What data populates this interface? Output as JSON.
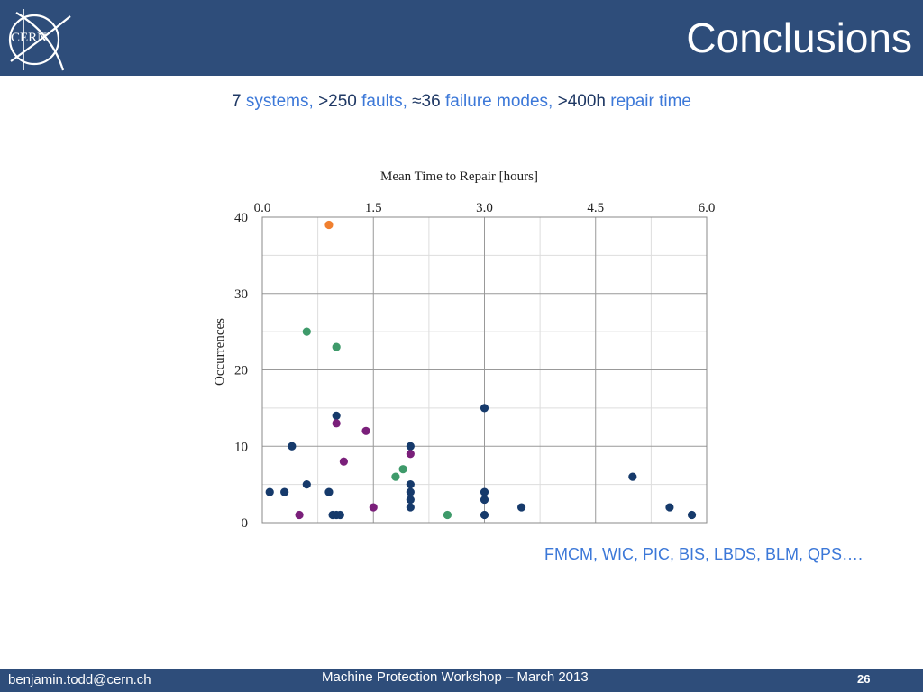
{
  "slide": {
    "title": "Conclusions",
    "logo_text": "CERN",
    "summary": [
      {
        "text": "7",
        "style": "n"
      },
      {
        "text": " systems, ",
        "style": "w"
      },
      {
        "text": ">250",
        "style": "n"
      },
      {
        "text": " faults, ",
        "style": "w"
      },
      {
        "text": "≈36",
        "style": "n"
      },
      {
        "text": " failure modes, ",
        "style": "w"
      },
      {
        "text": ">400h",
        "style": "n"
      },
      {
        "text": " repair time",
        "style": "w"
      }
    ],
    "systems_note": "FMCM, WIC, PIC, BIS, LBDS, BLM, QPS…."
  },
  "footer": {
    "email": "benjamin.todd@cern.ch",
    "event": "Machine Protection Workshop – March 2013",
    "page_number": "26"
  },
  "colors": {
    "header_bg": "#2e4d7a",
    "number_text": "#1f3864",
    "word_text": "#3c78d8",
    "series_navy": "#163a6b",
    "series_orange": "#f08030",
    "series_green": "#3e9a6a",
    "series_purple": "#7a1f7a"
  },
  "chart_data": {
    "type": "scatter",
    "title": "",
    "xlabel": "Mean Time to Repair [hours]",
    "ylabel": "Occurrences",
    "x_axis_position": "top",
    "xlim": [
      0,
      6
    ],
    "ylim": [
      0,
      40
    ],
    "x_ticks": [
      {
        "value": 0,
        "label": "0.0"
      },
      {
        "value": 1.5,
        "label": "1.5"
      },
      {
        "value": 3,
        "label": "3.0"
      },
      {
        "value": 4.5,
        "label": "4.5"
      },
      {
        "value": 6,
        "label": "6.0"
      }
    ],
    "y_ticks": [
      {
        "value": 0,
        "label": "0"
      },
      {
        "value": 10,
        "label": "10"
      },
      {
        "value": 20,
        "label": "20"
      },
      {
        "value": 30,
        "label": "30"
      },
      {
        "value": 40,
        "label": "40"
      }
    ],
    "x_minor_gridlines": [
      0.75,
      2.25,
      3.75,
      5.25
    ],
    "y_minor_gridlines": [
      5,
      15,
      25,
      35
    ],
    "grid": true,
    "series": [
      {
        "color": "#163a6b",
        "points": [
          [
            0.1,
            4
          ],
          [
            0.3,
            4
          ],
          [
            0.4,
            10
          ],
          [
            0.6,
            5
          ],
          [
            0.9,
            4
          ],
          [
            0.95,
            1
          ],
          [
            1.0,
            1
          ],
          [
            1.05,
            1
          ],
          [
            1.0,
            14
          ],
          [
            2.0,
            10
          ],
          [
            2.0,
            5
          ],
          [
            2.0,
            4
          ],
          [
            2.0,
            3
          ],
          [
            2.0,
            2
          ],
          [
            3.0,
            15
          ],
          [
            3.0,
            4
          ],
          [
            3.0,
            3
          ],
          [
            3.0,
            1
          ],
          [
            3.5,
            2
          ],
          [
            5.0,
            6
          ],
          [
            5.5,
            2
          ],
          [
            5.8,
            1
          ]
        ]
      },
      {
        "color": "#f08030",
        "points": [
          [
            0.9,
            39
          ]
        ]
      },
      {
        "color": "#3e9a6a",
        "points": [
          [
            0.6,
            25
          ],
          [
            1.0,
            23
          ],
          [
            1.8,
            6
          ],
          [
            1.9,
            7
          ],
          [
            2.5,
            1
          ]
        ]
      },
      {
        "color": "#7a1f7a",
        "points": [
          [
            0.5,
            1
          ],
          [
            1.0,
            13
          ],
          [
            1.1,
            8
          ],
          [
            1.4,
            12
          ],
          [
            1.5,
            2
          ],
          [
            2.0,
            9
          ]
        ]
      }
    ]
  }
}
